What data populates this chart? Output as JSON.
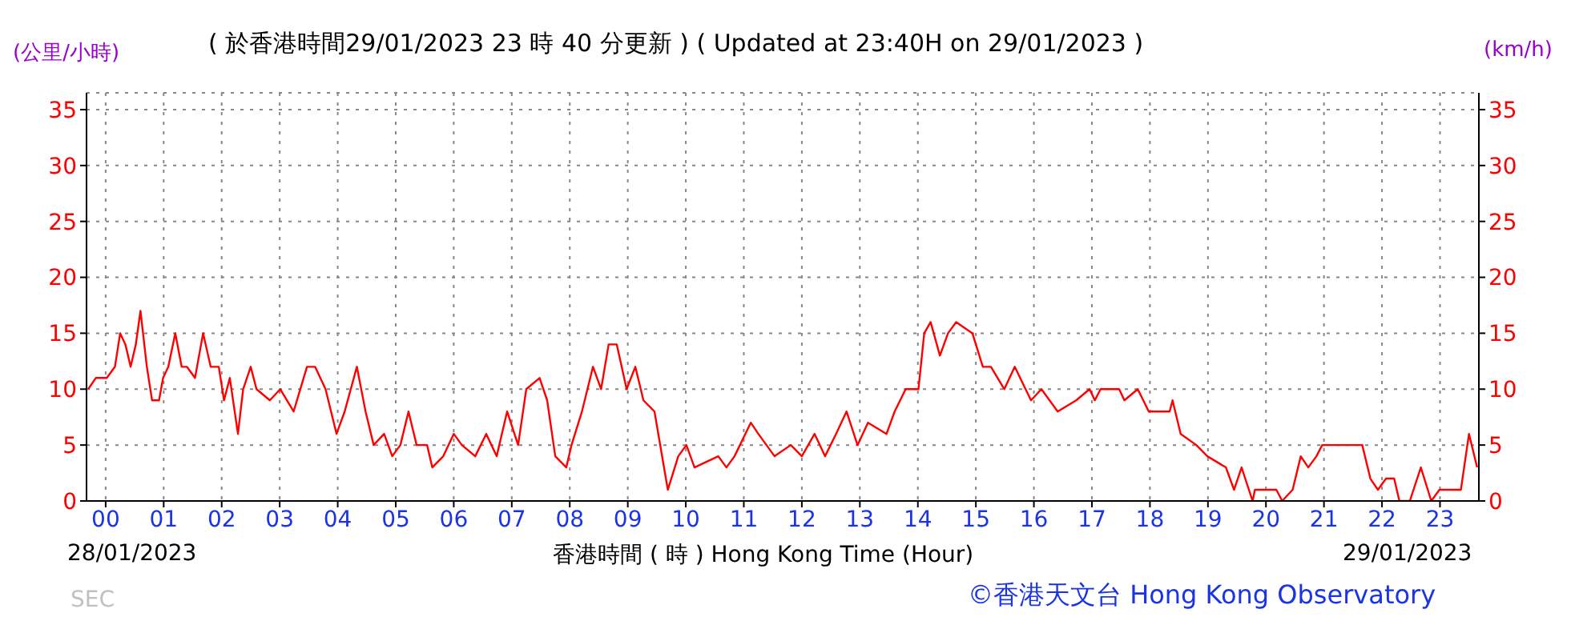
{
  "chart_data": {
    "type": "line",
    "title": "( 於香港時間29/01/2023 23 時 40 分更新 ) ( Updated at 23:40H on 29/01/2023 )",
    "xlabel": "香港時間 ( 時 ) Hong Kong Time (Hour)",
    "ylabel": "(公里/小時)",
    "y2label": "(km/h)",
    "annotations": [
      "28/01/2023",
      "29/01/2023",
      "SEC",
      "©香港天文台 Hong Kong Observatory"
    ],
    "x": [
      -0.3,
      -0.17,
      0.02,
      0.16,
      0.25,
      0.34,
      0.43,
      0.52,
      0.6,
      0.71,
      0.8,
      0.92,
      0.99,
      1.08,
      1.2,
      1.31,
      1.4,
      1.54,
      1.68,
      1.81,
      1.95,
      2.04,
      2.14,
      2.28,
      2.37,
      2.5,
      2.6,
      2.83,
      3.01,
      3.24,
      3.47,
      3.61,
      3.79,
      3.98,
      4.12,
      4.33,
      4.48,
      4.62,
      4.8,
      4.94,
      5.08,
      5.22,
      5.36,
      5.54,
      5.63,
      5.82,
      6.0,
      6.14,
      6.37,
      6.56,
      6.74,
      6.92,
      7.11,
      7.25,
      7.48,
      7.61,
      7.75,
      7.94,
      8.03,
      8.21,
      8.4,
      8.54,
      8.67,
      8.81,
      8.98,
      9.13,
      9.27,
      9.46,
      9.69,
      9.87,
      10.01,
      10.15,
      10.56,
      10.7,
      10.84,
      11.12,
      11.25,
      11.53,
      11.81,
      12.0,
      12.22,
      12.4,
      12.59,
      12.77,
      12.96,
      13.14,
      13.46,
      13.6,
      13.79,
      14.01,
      14.11,
      14.22,
      14.38,
      14.52,
      14.66,
      14.94,
      15.12,
      15.26,
      15.49,
      15.67,
      15.95,
      16.13,
      16.41,
      16.73,
      16.96,
      17.05,
      17.15,
      17.47,
      17.56,
      17.79,
      17.98,
      18.34,
      18.39,
      18.53,
      18.8,
      18.99,
      19.31,
      19.45,
      19.58,
      19.77,
      19.81,
      20.18,
      20.28,
      20.46,
      20.6,
      20.73,
      20.87,
      20.97,
      21.66,
      21.8,
      21.93,
      22.07,
      22.21,
      22.3,
      22.48,
      22.67,
      22.85,
      22.99,
      23.36,
      23.5,
      23.64
    ],
    "series": [
      {
        "color": "#ff0000",
        "values": [
          10,
          11,
          11,
          12,
          15,
          14,
          12,
          14,
          17,
          12,
          9,
          9,
          11,
          12,
          15,
          12,
          12,
          11,
          15,
          12,
          12,
          9,
          11,
          6,
          10,
          12,
          10,
          9,
          10,
          8,
          12,
          12,
          10,
          6,
          8,
          12,
          8,
          5,
          6,
          4,
          5,
          8,
          5,
          5,
          3,
          4,
          6,
          5,
          4,
          6,
          4,
          8,
          5,
          10,
          11,
          9,
          4,
          3,
          5,
          8,
          12,
          10,
          14,
          14,
          10,
          12,
          9,
          8,
          1,
          4,
          5,
          3,
          4,
          3,
          4,
          7,
          6,
          4,
          5,
          4,
          6,
          4,
          6,
          8,
          5,
          7,
          6,
          8,
          10,
          10,
          15,
          16,
          13,
          15,
          16,
          15,
          12,
          12,
          10,
          12,
          9,
          10,
          8,
          9,
          10,
          9,
          10,
          10,
          9,
          10,
          8,
          8,
          9,
          6,
          5,
          4,
          3,
          1,
          3,
          0,
          1,
          1,
          0,
          1,
          4,
          3,
          4,
          5,
          5,
          2,
          1,
          2,
          2,
          0,
          0,
          3,
          0,
          1,
          1,
          6,
          3
        ]
      }
    ],
    "xlim": [
      -0.33,
      23.67
    ],
    "xticks": [
      {
        "value": 0,
        "label": "00"
      },
      {
        "value": 1,
        "label": "01"
      },
      {
        "value": 2,
        "label": "02"
      },
      {
        "value": 3,
        "label": "03"
      },
      {
        "value": 4,
        "label": "04"
      },
      {
        "value": 5,
        "label": "05"
      },
      {
        "value": 6,
        "label": "06"
      },
      {
        "value": 7,
        "label": "07"
      },
      {
        "value": 8,
        "label": "08"
      },
      {
        "value": 9,
        "label": "09"
      },
      {
        "value": 10,
        "label": "10"
      },
      {
        "value": 11,
        "label": "11"
      },
      {
        "value": 12,
        "label": "12"
      },
      {
        "value": 13,
        "label": "13"
      },
      {
        "value": 14,
        "label": "14"
      },
      {
        "value": 15,
        "label": "15"
      },
      {
        "value": 16,
        "label": "16"
      },
      {
        "value": 17,
        "label": "17"
      },
      {
        "value": 18,
        "label": "18"
      },
      {
        "value": 19,
        "label": "19"
      },
      {
        "value": 20,
        "label": "20"
      },
      {
        "value": 21,
        "label": "21"
      },
      {
        "value": 22,
        "label": "22"
      },
      {
        "value": 23,
        "label": "23"
      }
    ],
    "ylim": [
      0,
      36.5
    ],
    "yticks": [
      0,
      5,
      10,
      15,
      20,
      25,
      30,
      35
    ],
    "y2lim": [
      0,
      36.5
    ],
    "y2ticks": [
      0,
      5,
      10,
      15,
      20,
      25,
      30,
      35
    ],
    "grid": true,
    "legend": false,
    "marker": "none",
    "line_style": "solid"
  }
}
